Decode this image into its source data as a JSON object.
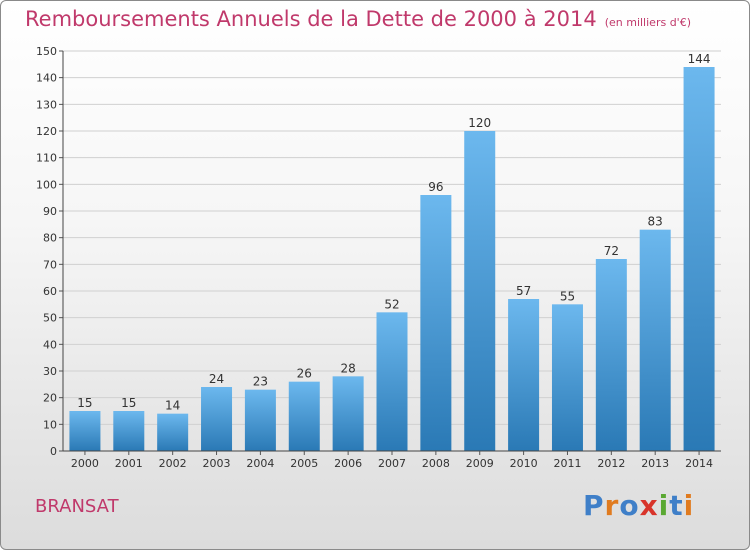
{
  "chart_data": {
    "type": "bar",
    "title": "Remboursements Annuels de la Dette de 2000 à 2014",
    "subtitle": "(en milliers d'€)",
    "categories": [
      "2000",
      "2001",
      "2002",
      "2003",
      "2004",
      "2005",
      "2006",
      "2007",
      "2008",
      "2009",
      "2010",
      "2011",
      "2012",
      "2013",
      "2014"
    ],
    "values": [
      15,
      15,
      14,
      24,
      23,
      26,
      28,
      52,
      96,
      120,
      57,
      55,
      72,
      83,
      144
    ],
    "ylim": [
      0,
      150
    ],
    "yticks": [
      0,
      10,
      20,
      30,
      40,
      50,
      60,
      70,
      80,
      90,
      100,
      110,
      120,
      130,
      140,
      150
    ],
    "grid": true,
    "xlabel": "",
    "ylabel": "",
    "colors": {
      "bar_light": "#6cb8ee",
      "bar_dark": "#2a79b5",
      "title": "#c0396b",
      "grid": "#d0d0d0"
    }
  },
  "footer": {
    "town": "BRANSAT",
    "logo": "Proxiti",
    "logo_letters": [
      {
        "ch": "P",
        "color": "#3f7fc8"
      },
      {
        "ch": "r",
        "color": "#e07b1f"
      },
      {
        "ch": "o",
        "color": "#3f7fc8"
      },
      {
        "ch": "x",
        "color": "#d8342a"
      },
      {
        "ch": "i",
        "color": "#5aa832"
      },
      {
        "ch": "t",
        "color": "#3f7fc8"
      },
      {
        "ch": "i",
        "color": "#e07b1f"
      }
    ]
  }
}
